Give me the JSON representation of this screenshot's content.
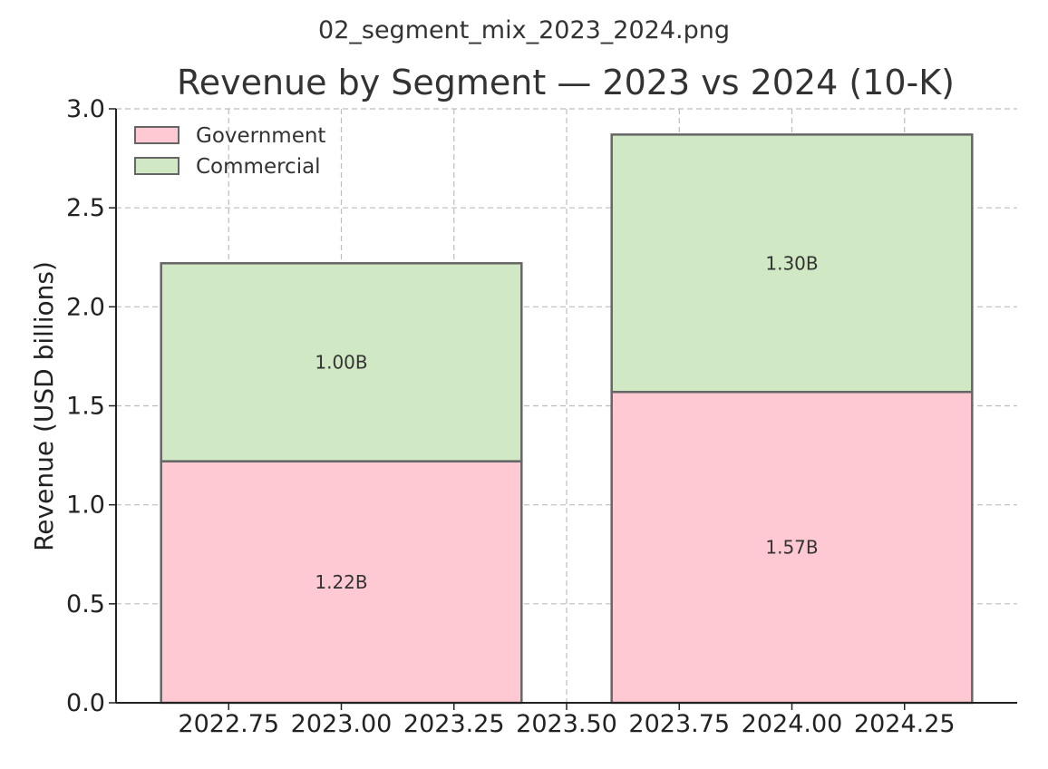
{
  "file_title": "02_segment_mix_2023_2024.png",
  "colors": {
    "government": "#ffc9d4",
    "commercial": "#d0e8c3",
    "edge": "#666666",
    "grid": "#bdbdbd",
    "axis": "#222222"
  },
  "chart_data": {
    "type": "bar",
    "stacked": true,
    "title": "Revenue by Segment — 2023 vs 2024 (10-K)",
    "xlabel": "",
    "ylabel": "Revenue (USD billions)",
    "categories": [
      "2023",
      "2024"
    ],
    "x": [
      2023.0,
      2024.0
    ],
    "bar_width": 0.8,
    "xlim": [
      2022.5,
      2024.5
    ],
    "ylim": [
      0,
      3.0
    ],
    "xticks": [
      {
        "value": 2022.75,
        "label": "2022.75"
      },
      {
        "value": 2023.0,
        "label": "2023.00"
      },
      {
        "value": 2023.25,
        "label": "2023.25"
      },
      {
        "value": 2023.5,
        "label": "2023.50"
      },
      {
        "value": 2023.75,
        "label": "2023.75"
      },
      {
        "value": 2024.0,
        "label": "2024.00"
      },
      {
        "value": 2024.25,
        "label": "2024.25"
      }
    ],
    "yticks": [
      {
        "value": 0.0,
        "label": "0.0"
      },
      {
        "value": 0.5,
        "label": "0.5"
      },
      {
        "value": 1.0,
        "label": "1.0"
      },
      {
        "value": 1.5,
        "label": "1.5"
      },
      {
        "value": 2.0,
        "label": "2.0"
      },
      {
        "value": 2.5,
        "label": "2.5"
      },
      {
        "value": 3.0,
        "label": "3.0"
      }
    ],
    "grid": true,
    "legend_position": "top-left",
    "series": [
      {
        "name": "Government",
        "color_key": "government",
        "values": [
          1.22,
          1.57
        ],
        "labels": [
          "1.22B",
          "1.57B"
        ]
      },
      {
        "name": "Commercial",
        "color_key": "commercial",
        "values": [
          1.0,
          1.3
        ],
        "labels": [
          "1.00B",
          "1.30B"
        ]
      }
    ]
  }
}
